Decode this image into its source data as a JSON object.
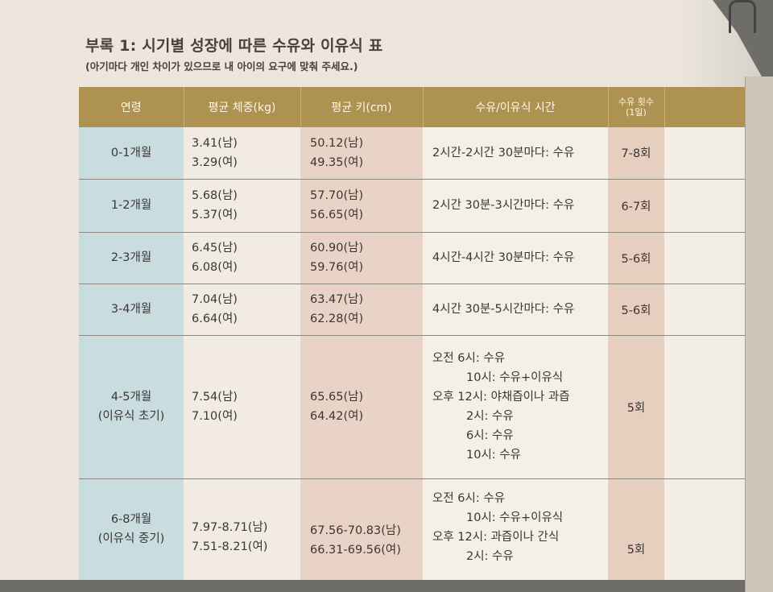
{
  "title": "부록 1: 시기별 성장에 따른 수유와 이유식 표",
  "subtitle": "(아기마다 개인 차이가 있으므로 내 아이의 요구에 맞춰 주세요.)",
  "headers": {
    "age": "연령",
    "weight": "평균 체중(kg)",
    "height": "평균 키(cm)",
    "schedule": "수유/이유식 시간",
    "count": "수유 횟수",
    "count_sub": "(1일)"
  },
  "rows": [
    {
      "age": [
        "0-1개월"
      ],
      "weight": [
        "3.41(남)",
        "3.29(여)"
      ],
      "height": [
        "50.12(남)",
        "49.35(여)"
      ],
      "schedule": [
        "2시간-2시간 30분마다: 수유"
      ],
      "count": "7-8회"
    },
    {
      "age": [
        "1-2개월"
      ],
      "weight": [
        "5.68(남)",
        "5.37(여)"
      ],
      "height": [
        "57.70(남)",
        "56.65(여)"
      ],
      "schedule": [
        "2시간 30분-3시간마다: 수유"
      ],
      "count": "6-7회"
    },
    {
      "age": [
        "2-3개월"
      ],
      "weight": [
        "6.45(남)",
        "6.08(여)"
      ],
      "height": [
        "60.90(남)",
        "59.76(여)"
      ],
      "schedule": [
        "4시간-4시간 30분마다: 수유"
      ],
      "count": "5-6회"
    },
    {
      "age": [
        "3-4개월"
      ],
      "weight": [
        "7.04(남)",
        "6.64(여)"
      ],
      "height": [
        "63.47(남)",
        "62.28(여)"
      ],
      "schedule": [
        "4시간 30분-5시간마다: 수유"
      ],
      "count": "5-6회"
    },
    {
      "age": [
        "4-5개월",
        "(이유식 초기)"
      ],
      "weight": [
        "7.54(남)",
        "7.10(여)"
      ],
      "height": [
        "65.65(남)",
        "64.42(여)"
      ],
      "schedule": [
        "오전 6시: 수유",
        "10시: 수유+이유식",
        "오후 12시: 야채즙이나 과즙",
        "2시: 수유",
        "6시: 수유",
        "10시: 수유"
      ],
      "count": "5회"
    },
    {
      "age": [
        "6-8개월",
        "(이유식 중기)"
      ],
      "weight": [
        "7.97-8.71(남)",
        "7.51-8.21(여)"
      ],
      "height": [
        "67.56-70.83(남)",
        "66.31-69.56(여)"
      ],
      "schedule": [
        "오전 6시: 수유",
        "10시: 수유+이유식",
        "오후 12시: 과즙이나 간식",
        "2시: 수유"
      ],
      "count": "5회"
    }
  ]
}
